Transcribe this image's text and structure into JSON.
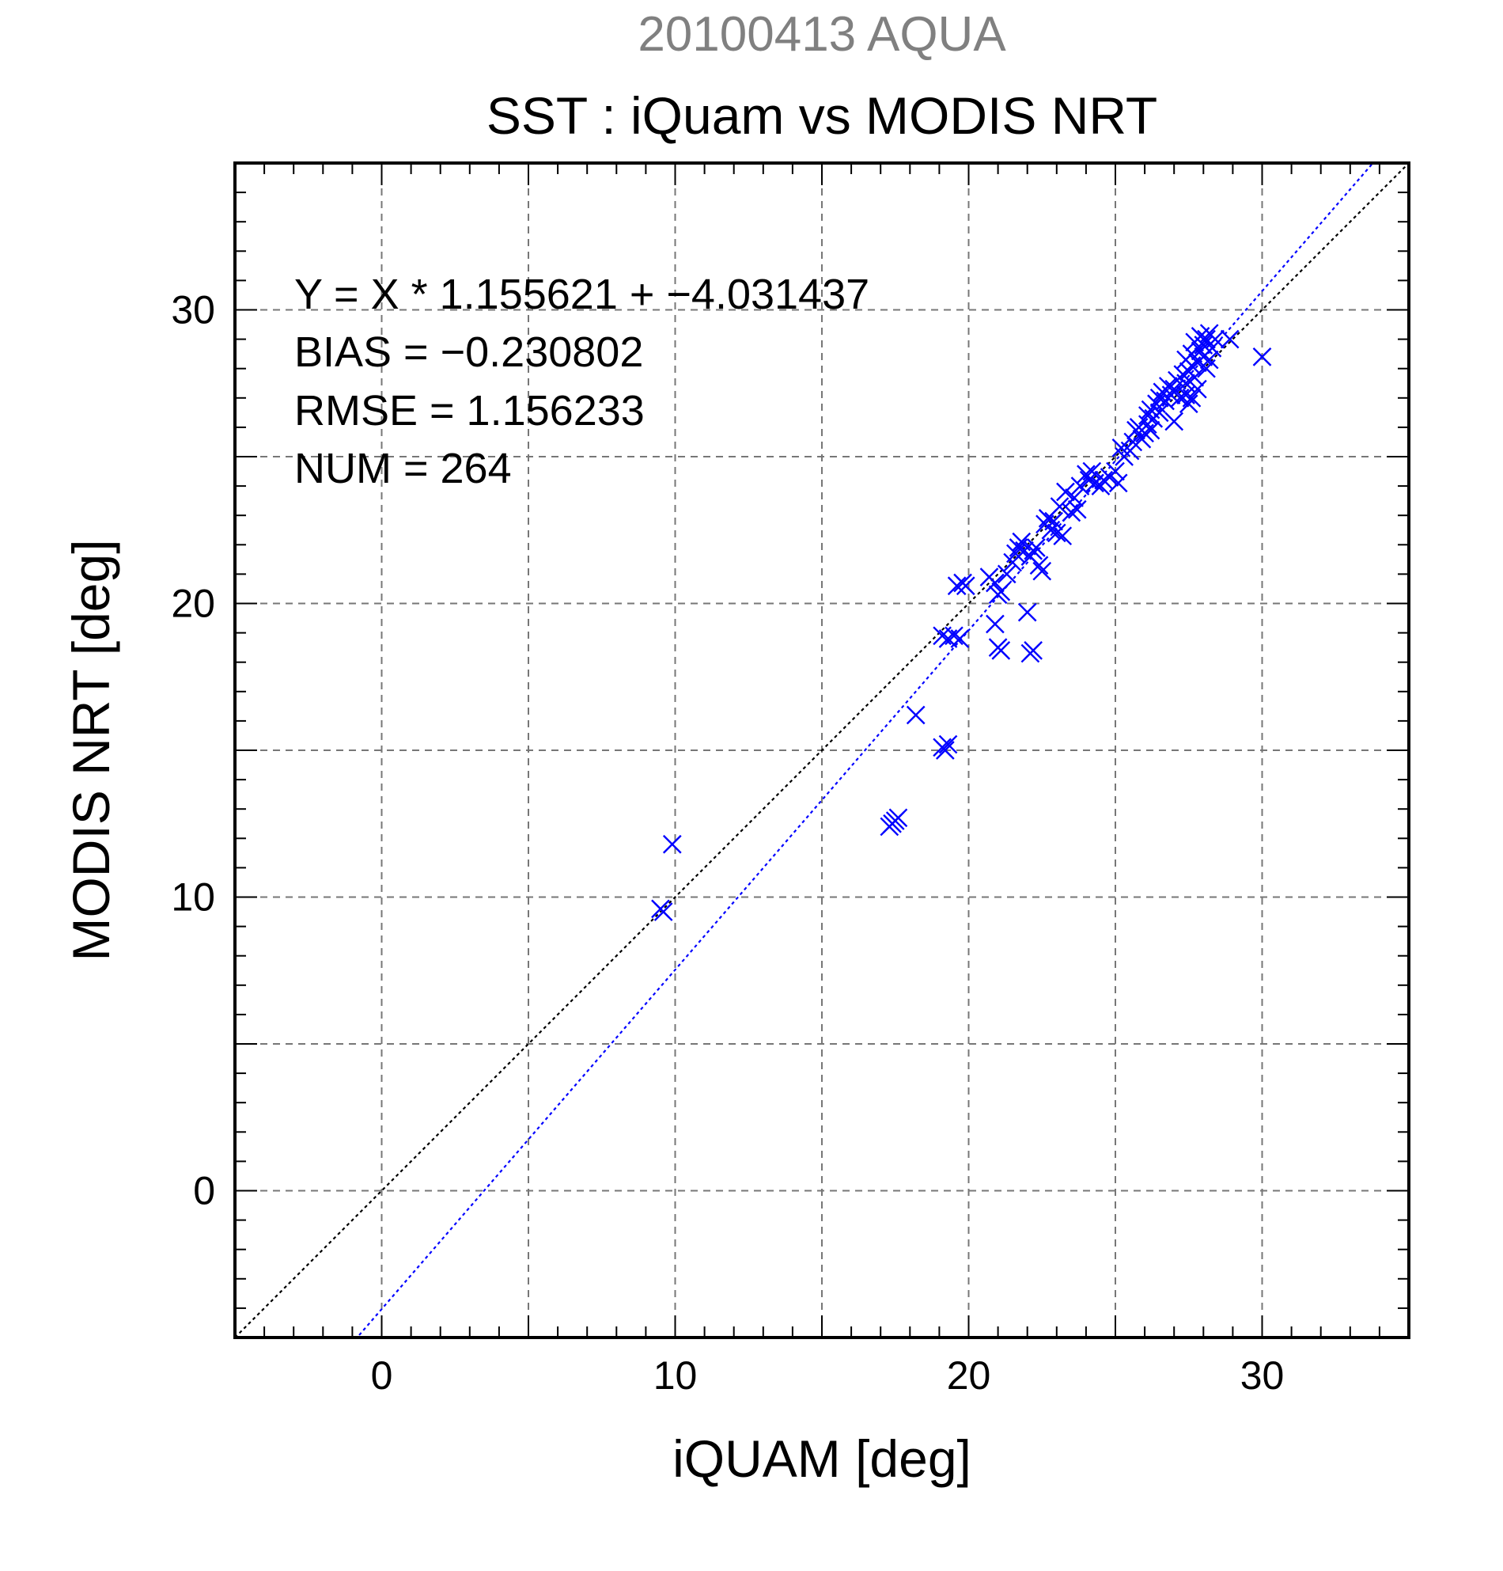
{
  "chart_data": {
    "type": "scatter",
    "supertitle": "20100413 AQUA",
    "title": "SST : iQuam vs MODIS NRT",
    "xlabel": "iQUAM [deg]",
    "ylabel": "MODIS NRT [deg]",
    "xlim": [
      -5,
      35
    ],
    "ylim": [
      -5,
      35
    ],
    "xticks": [
      0,
      10,
      20,
      30
    ],
    "yticks": [
      0,
      10,
      20,
      30
    ],
    "xtick_labels": [
      "0",
      "10",
      "20",
      "30"
    ],
    "ytick_labels": [
      "0",
      "10",
      "20",
      "30"
    ],
    "grid": true,
    "grid_step": 5,
    "minor_tick_step": 1,
    "stats": {
      "equation": "Y = X * 1.155621 + −4.031437",
      "bias": "BIAS = −0.230802",
      "rmse": "RMSE = 1.156233",
      "num": "NUM = 264"
    },
    "lines": [
      {
        "kind": "one-to-one",
        "slope": 1,
        "intercept": 0,
        "color": "#000000",
        "style": "dotted"
      },
      {
        "kind": "fit",
        "slope": 1.155621,
        "intercept": -4.031437,
        "color": "#0000ff",
        "style": "dotted"
      }
    ],
    "marker": "x",
    "marker_color": "#0000ff",
    "points": [
      [
        9.5,
        9.6
      ],
      [
        9.6,
        9.5
      ],
      [
        9.9,
        11.8
      ],
      [
        17.3,
        12.4
      ],
      [
        17.4,
        12.5
      ],
      [
        17.6,
        12.7
      ],
      [
        17.5,
        12.6
      ],
      [
        18.2,
        16.2
      ],
      [
        19.1,
        15.1
      ],
      [
        19.2,
        15.0
      ],
      [
        19.3,
        15.2
      ],
      [
        19.1,
        18.9
      ],
      [
        19.3,
        18.8
      ],
      [
        19.5,
        18.9
      ],
      [
        19.7,
        18.8
      ],
      [
        19.6,
        20.6
      ],
      [
        19.8,
        20.7
      ],
      [
        19.9,
        20.6
      ],
      [
        20.7,
        20.9
      ],
      [
        20.9,
        20.7
      ],
      [
        20.9,
        19.3
      ],
      [
        21.0,
        20.3
      ],
      [
        21.1,
        20.4
      ],
      [
        21.0,
        18.5
      ],
      [
        21.1,
        18.4
      ],
      [
        21.3,
        21.0
      ],
      [
        21.5,
        21.4
      ],
      [
        21.6,
        21.7
      ],
      [
        21.8,
        22.1
      ],
      [
        21.7,
        21.9
      ],
      [
        21.9,
        21.8
      ],
      [
        22.0,
        19.7
      ],
      [
        22.1,
        18.3
      ],
      [
        22.2,
        18.4
      ],
      [
        22.1,
        21.6
      ],
      [
        22.2,
        21.8
      ],
      [
        22.3,
        21.9
      ],
      [
        22.4,
        21.3
      ],
      [
        22.5,
        21.1
      ],
      [
        22.6,
        22.7
      ],
      [
        22.7,
        22.9
      ],
      [
        22.8,
        22.5
      ],
      [
        22.9,
        22.8
      ],
      [
        23.1,
        23.3
      ],
      [
        23.0,
        22.4
      ],
      [
        23.2,
        22.3
      ],
      [
        23.3,
        23.8
      ],
      [
        23.5,
        23.1
      ],
      [
        23.6,
        23.6
      ],
      [
        23.7,
        23.2
      ],
      [
        23.8,
        24.0
      ],
      [
        24.0,
        24.4
      ],
      [
        24.1,
        24.2
      ],
      [
        24.2,
        24.5
      ],
      [
        24.3,
        24.1
      ],
      [
        24.5,
        24.0
      ],
      [
        24.6,
        24.2
      ],
      [
        24.8,
        24.3
      ],
      [
        25.0,
        24.5
      ],
      [
        25.1,
        24.1
      ],
      [
        25.2,
        25.3
      ],
      [
        25.3,
        25.0
      ],
      [
        25.5,
        25.2
      ],
      [
        25.6,
        25.5
      ],
      [
        25.7,
        25.9
      ],
      [
        25.8,
        26.0
      ],
      [
        25.9,
        25.6
      ],
      [
        26.0,
        25.8
      ],
      [
        26.1,
        26.1
      ],
      [
        26.2,
        25.9
      ],
      [
        26.1,
        26.4
      ],
      [
        26.2,
        26.6
      ],
      [
        26.3,
        26.3
      ],
      [
        26.4,
        26.8
      ],
      [
        26.5,
        26.5
      ],
      [
        26.5,
        27.0
      ],
      [
        26.6,
        27.2
      ],
      [
        26.7,
        26.9
      ],
      [
        26.8,
        27.4
      ],
      [
        26.9,
        27.1
      ],
      [
        27.0,
        27.3
      ],
      [
        27.1,
        27.6
      ],
      [
        27.2,
        27.0
      ],
      [
        27.0,
        26.2
      ],
      [
        27.3,
        27.8
      ],
      [
        27.4,
        27.5
      ],
      [
        27.5,
        27.9
      ],
      [
        27.6,
        28.1
      ],
      [
        27.7,
        27.7
      ],
      [
        27.4,
        28.3
      ],
      [
        27.6,
        28.5
      ],
      [
        27.8,
        28.2
      ],
      [
        27.9,
        28.6
      ],
      [
        28.0,
        28.4
      ],
      [
        27.7,
        28.9
      ],
      [
        27.9,
        29.1
      ],
      [
        28.0,
        28.8
      ],
      [
        28.1,
        29.0
      ],
      [
        28.2,
        29.2
      ],
      [
        28.3,
        28.7
      ],
      [
        28.4,
        29.0
      ],
      [
        28.1,
        28.0
      ],
      [
        28.2,
        28.3
      ],
      [
        27.4,
        27.1
      ],
      [
        27.6,
        27.0
      ],
      [
        27.8,
        27.3
      ],
      [
        27.5,
        26.8
      ],
      [
        28.9,
        29.0
      ],
      [
        30.0,
        28.4
      ]
    ]
  }
}
